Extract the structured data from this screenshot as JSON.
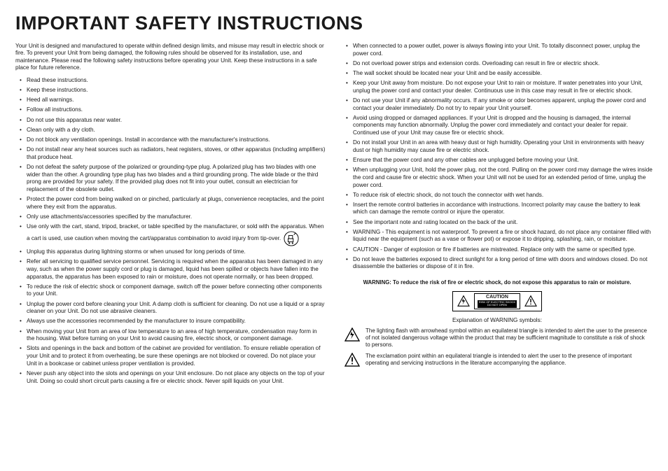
{
  "title": "IMPORTANT SAFETY INSTRUCTIONS",
  "intro": "Your Unit is designed and manufactured to operate within defined design limits, and misuse may result in electric shock or fire. To prevent your Unit from being damaged, the following rules should be observed for its installation, use, and maintenance. Please read the following safety instructions before operating your Unit. Keep these instructions in a safe place for future reference.",
  "col1": [
    "Read these instructions.",
    "Keep these instructions.",
    "Heed all warnings.",
    "Follow all instructions.",
    "Do not use this apparatus near water.",
    "Clean only with a dry cloth.",
    "Do not block any ventilation openings. Install in accordance with the manufacturer's instructions.",
    "Do not install near any heat sources such as radiators, heat registers, stoves, or other apparatus (including amplifiers) that produce heat.",
    "Do not defeat the safety purpose of the polarized or grounding-type plug. A polarized plug has two blades with one wider than the other. A grounding type plug has two blades and a third grounding prong. The wide blade or the third prong are provided for your safety. If the provided plug does not fit into your outlet, consult an electrician for replacement of the obsolete outlet.",
    "Protect the power cord from being walked on or pinched, particularly at plugs, convenience receptacles, and the point where they exit from the apparatus.",
    "Only use attachments/accessories specified by the manufacturer.",
    "Use only with the cart, stand, tripod, bracket, or table specified by the manufacturer, or sold with the apparatus. When a cart is used, use caution when moving the cart/apparatus combination to avoid injury from tip-over.",
    "Unplug this apparatus during lightning storms or when unused for long periods of time.",
    "Refer all servicing to qualified service personnel. Servicing is required when the apparatus has been damaged in any way, such as when the power supply cord or plug is damaged, liquid has been spilled or objects have fallen into the apparatus, the apparatus has been exposed to rain or moisture, does not operate normally, or has been dropped.",
    "To reduce the risk of electric shock or component damage, switch off the power before connecting other components to your Unit.",
    "Unplug the power cord before cleaning your Unit. A damp cloth is sufficient for cleaning. Do not use a liquid or a spray cleaner on your Unit. Do not use abrasive cleaners.",
    "Always use the accessories recommended by the manufacturer to insure compatibility.",
    "When moving your Unit from an area of low temperature to an area of high temperature, condensation may form in the housing. Wait before turning on your Unit to avoid causing fire, electric shock, or component damage.",
    "Slots and openings in the back and bottom of the cabinet are provided for ventilation. To ensure reliable operation of your Unit and to protect it from overheating, be sure these openings are not blocked or covered. Do not place your Unit in a bookcase or cabinet unless proper ventilation is provided.",
    "Never push any object into the slots and openings on your Unit enclosure. Do not place any objects on the top of your Unit. Doing so could short circuit parts causing a fire or electric shock. Never spill liquids on your Unit."
  ],
  "col2": [
    "When connected to a power outlet, power is always flowing into your Unit. To totally disconnect power, unplug the power cord.",
    "Do not overload power strips and extension cords. Overloading can result in fire or electric shock.",
    "The wall socket should be located near your Unit and be easily accessible.",
    "Keep your Unit away from moisture. Do not expose your Unit to rain or moisture. If water penetrates into your Unit, unplug the power cord and contact your dealer. Continuous use in this case may result in fire or electric shock.",
    "Do not use your Unit if any abnormality occurs. If any smoke or odor becomes apparent, unplug the power cord and contact your dealer immediately. Do not try to repair your Unit yourself.",
    "Avoid using dropped or damaged appliances. If your Unit is dropped and the housing is damaged, the internal components may function abnormally. Unplug the power cord immediately and contact your dealer for repair. Continued use of your Unit may cause fire or electric shock.",
    "Do not install your Unit in an area with heavy dust or high humidity. Operating your Unit in environments with heavy dust or high humidity may cause fire or electric shock.",
    "Ensure that the power cord and any other cables are unplugged before moving your Unit.",
    "When unplugging your Unit, hold the power plug, not the cord. Pulling on the power cord may damage the wires inside the cord and cause fire or electric shock. When your Unit will not be used for an extended period of time, unplug the power cord.",
    "To reduce risk of electric shock, do not touch the connector with wet hands.",
    "Insert the remote control batteries in accordance with instructions. Incorrect polarity may cause the battery to leak which can damage the remote control or injure the operator.",
    "See the important note and rating located on the back of the unit.",
    "WARNING - This equipment is not waterproof. To prevent a fire or shock hazard, do not place any container filled with liquid near the equipment (such as a vase or flower pot) or expose it to dripping, splashing, rain, or moisture.",
    "CAUTION - Danger of explosion or fire if batteries are mistreated. Replace only with the same or specified type.",
    "Do not leave the batteries exposed to direct sunlight for a long period of time with doors and windows closed. Do not disassemble the batteries or dispose of it in fire."
  ],
  "warning_footer": "WARNING: To reduce the risk of fire or electric shock, do not expose this apparatus to rain or moisture.",
  "caution_label": "CAUTION",
  "caution_sub": "RISK OF ELECTRIC SHOCK\nDO NOT OPEN",
  "explain_title": "Explanation of WARNING symbols:",
  "sym1": "The lighting flash with arrowhead symbol within an equilateral triangle is intended to alert the user to the presence of not isolated dangerous voltage within the product that may be sufficient magnitude to constitute a risk of shock to persons.",
  "sym2": "The exclamation point within an equilateral triangle is intended to alert the user to the presence of important operating and servicing instructions in the literature accompanying the appliance."
}
